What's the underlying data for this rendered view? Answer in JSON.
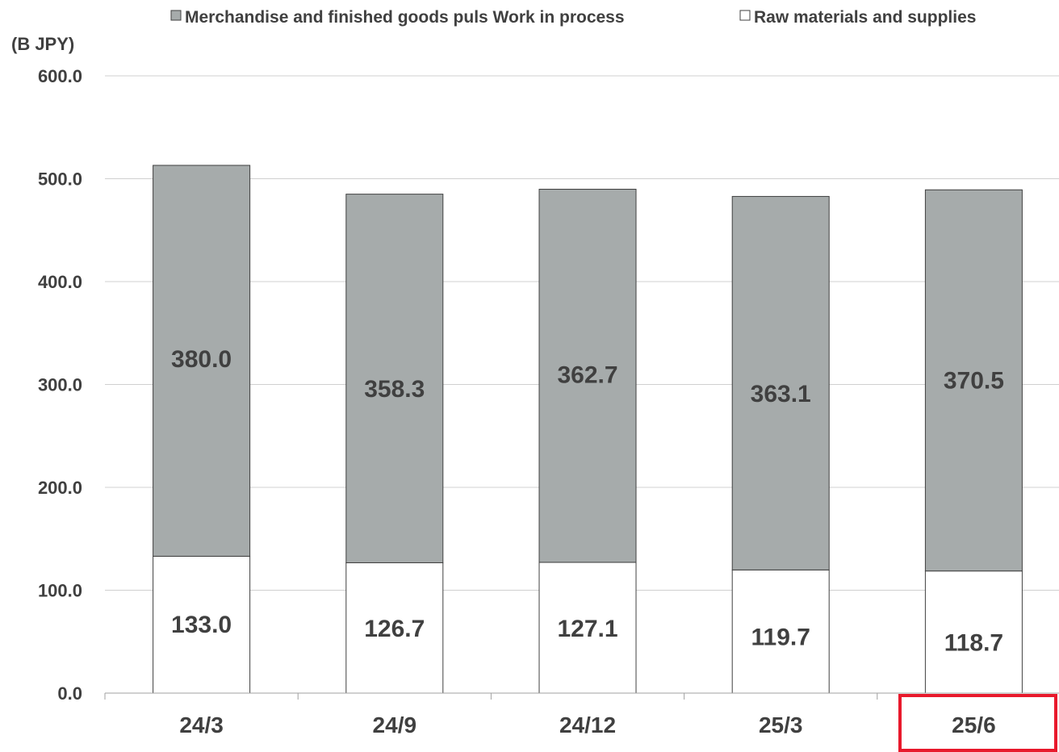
{
  "colors": {
    "series_upper": "#a6abab",
    "series_lower": "#ffffff",
    "bar_stroke": "#404040",
    "grid": "#d0d0d0",
    "text": "#404040",
    "highlight": "#e8192c"
  },
  "chart_data": {
    "type": "bar",
    "stacked": true,
    "title": "",
    "xlabel": "",
    "ylabel": "(B JPY)",
    "ylim": [
      0,
      600
    ],
    "yticks": [
      "0.0",
      "100.0",
      "200.0",
      "300.0",
      "400.0",
      "500.0",
      "600.0"
    ],
    "grid": true,
    "legend_position": "top",
    "categories": [
      "24/3",
      "24/9",
      "24/12",
      "25/3",
      "25/6"
    ],
    "highlighted_category": "25/6",
    "series": [
      {
        "name": "Raw materials and supplies",
        "values": [
          133.0,
          126.7,
          127.1,
          119.7,
          118.7
        ],
        "labels": [
          "133.0",
          "126.7",
          "127.1",
          "119.7",
          "118.7"
        ],
        "color": "#ffffff"
      },
      {
        "name": "Merchandise and finished goods puls Work in process",
        "values": [
          380.0,
          358.3,
          362.7,
          363.1,
          370.5
        ],
        "labels": [
          "380.0",
          "358.3",
          "362.7",
          "363.1",
          "370.5"
        ],
        "color": "#a6abab"
      }
    ]
  }
}
